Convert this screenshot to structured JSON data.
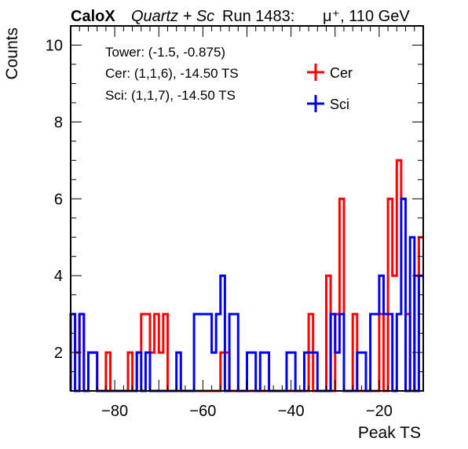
{
  "header": {
    "brand": "CaloX",
    "subtitle": "Quartz + Sc",
    "run": "Run 1483:",
    "beam": "μ⁺, 110 GeV"
  },
  "info": {
    "tower": "Tower: (-1.5, -0.875)",
    "cer": "Cer: (1,1,6), -14.50 TS",
    "sci": "Sci: (1,1,7), -14.50 TS"
  },
  "colors": {
    "cer": "#ff0000",
    "sci": "#0000ee"
  },
  "chart_data": {
    "type": "histogram",
    "xlabel": "Peak TS",
    "ylabel": "Counts",
    "xlim": [
      -90,
      -10
    ],
    "ylim": [
      1,
      10.5
    ],
    "bin_width": 1,
    "x_ticks": [
      -80,
      -60,
      -40,
      -20
    ],
    "x_tick_labels": [
      "−80",
      "−60",
      "−40",
      "−20"
    ],
    "y_ticks": [
      2,
      4,
      6,
      8,
      10
    ],
    "y_tick_labels": [
      "2",
      "4",
      "6",
      "8",
      "10"
    ],
    "legend": {
      "position": "top-right",
      "entries": [
        "Cer",
        "Sci"
      ]
    },
    "series": [
      {
        "name": "Cer",
        "color": "#ff0000",
        "bins": [
          [
            -90,
            3
          ],
          [
            -89,
            2
          ],
          [
            -88,
            3
          ],
          [
            -87,
            1
          ],
          [
            -86,
            2
          ],
          [
            -85,
            2
          ],
          [
            -84,
            1
          ],
          [
            -83,
            1
          ],
          [
            -82,
            2
          ],
          [
            -81,
            1
          ],
          [
            -80,
            1
          ],
          [
            -79,
            1
          ],
          [
            -78,
            1
          ],
          [
            -77,
            2
          ],
          [
            -76,
            1
          ],
          [
            -75,
            2
          ],
          [
            -74,
            3
          ],
          [
            -73,
            3
          ],
          [
            -72,
            2
          ],
          [
            -71,
            3
          ],
          [
            -70,
            2
          ],
          [
            -69,
            3
          ],
          [
            -68,
            1
          ],
          [
            -67,
            1
          ],
          [
            -66,
            1
          ],
          [
            -65,
            1
          ],
          [
            -64,
            1
          ],
          [
            -63,
            1
          ],
          [
            -62,
            1
          ],
          [
            -61,
            1
          ],
          [
            -60,
            1
          ],
          [
            -59,
            1
          ],
          [
            -58,
            1
          ],
          [
            -57,
            1
          ],
          [
            -56,
            2
          ],
          [
            -55,
            2
          ],
          [
            -54,
            1
          ],
          [
            -53,
            1
          ],
          [
            -52,
            1
          ],
          [
            -51,
            1
          ],
          [
            -50,
            1
          ],
          [
            -49,
            1
          ],
          [
            -48,
            1
          ],
          [
            -47,
            1
          ],
          [
            -46,
            1
          ],
          [
            -45,
            1
          ],
          [
            -44,
            1
          ],
          [
            -43,
            1
          ],
          [
            -42,
            1
          ],
          [
            -41,
            1
          ],
          [
            -40,
            1
          ],
          [
            -39,
            1
          ],
          [
            -38,
            1
          ],
          [
            -37,
            1
          ],
          [
            -36,
            3
          ],
          [
            -35,
            1
          ],
          [
            -34,
            1
          ],
          [
            -33,
            1
          ],
          [
            -32,
            4
          ],
          [
            -31,
            1
          ],
          [
            -30,
            3
          ],
          [
            -29,
            6
          ],
          [
            -28,
            1
          ],
          [
            -27,
            1
          ],
          [
            -26,
            3
          ],
          [
            -25,
            1
          ],
          [
            -24,
            1
          ],
          [
            -23,
            1
          ],
          [
            -22,
            1
          ],
          [
            -21,
            1
          ],
          [
            -20,
            3
          ],
          [
            -19,
            1
          ],
          [
            -18,
            6
          ],
          [
            -17,
            4
          ],
          [
            -16,
            7
          ],
          [
            -15,
            6
          ],
          [
            -14,
            3
          ],
          [
            -13,
            1
          ],
          [
            -12,
            4
          ],
          [
            -11,
            5
          ]
        ]
      },
      {
        "name": "Sci",
        "color": "#0000ee",
        "bins": [
          [
            -90,
            3
          ],
          [
            -89,
            1
          ],
          [
            -88,
            3
          ],
          [
            -87,
            1
          ],
          [
            -86,
            2
          ],
          [
            -85,
            2
          ],
          [
            -84,
            1
          ],
          [
            -83,
            1
          ],
          [
            -82,
            1
          ],
          [
            -81,
            1
          ],
          [
            -80,
            1
          ],
          [
            -79,
            1
          ],
          [
            -78,
            1
          ],
          [
            -77,
            1
          ],
          [
            -76,
            1
          ],
          [
            -75,
            2
          ],
          [
            -74,
            1
          ],
          [
            -73,
            2
          ],
          [
            -72,
            1
          ],
          [
            -71,
            1
          ],
          [
            -70,
            1
          ],
          [
            -69,
            1
          ],
          [
            -68,
            1
          ],
          [
            -67,
            1
          ],
          [
            -66,
            2
          ],
          [
            -65,
            1
          ],
          [
            -64,
            1
          ],
          [
            -63,
            1
          ],
          [
            -62,
            3
          ],
          [
            -61,
            3
          ],
          [
            -60,
            3
          ],
          [
            -59,
            3
          ],
          [
            -58,
            2
          ],
          [
            -57,
            3
          ],
          [
            -56,
            4
          ],
          [
            -55,
            1
          ],
          [
            -54,
            3
          ],
          [
            -53,
            3
          ],
          [
            -52,
            1
          ],
          [
            -51,
            1
          ],
          [
            -50,
            2
          ],
          [
            -49,
            2
          ],
          [
            -48,
            1
          ],
          [
            -47,
            2
          ],
          [
            -46,
            2
          ],
          [
            -45,
            1
          ],
          [
            -44,
            1
          ],
          [
            -43,
            1
          ],
          [
            -42,
            1
          ],
          [
            -41,
            2
          ],
          [
            -40,
            2
          ],
          [
            -39,
            1
          ],
          [
            -38,
            1
          ],
          [
            -37,
            2
          ],
          [
            -36,
            2
          ],
          [
            -35,
            2
          ],
          [
            -34,
            1
          ],
          [
            -33,
            1
          ],
          [
            -32,
            1
          ],
          [
            -31,
            3
          ],
          [
            -30,
            2
          ],
          [
            -29,
            3
          ],
          [
            -28,
            1
          ],
          [
            -27,
            1
          ],
          [
            -26,
            1
          ],
          [
            -25,
            2
          ],
          [
            -24,
            2
          ],
          [
            -23,
            1
          ],
          [
            -22,
            3
          ],
          [
            -21,
            3
          ],
          [
            -20,
            4
          ],
          [
            -19,
            3
          ],
          [
            -18,
            3
          ],
          [
            -17,
            1
          ],
          [
            -16,
            3
          ],
          [
            -15,
            6
          ],
          [
            -14,
            1
          ],
          [
            -13,
            5
          ],
          [
            -12,
            1
          ],
          [
            -11,
            4
          ]
        ]
      }
    ]
  }
}
